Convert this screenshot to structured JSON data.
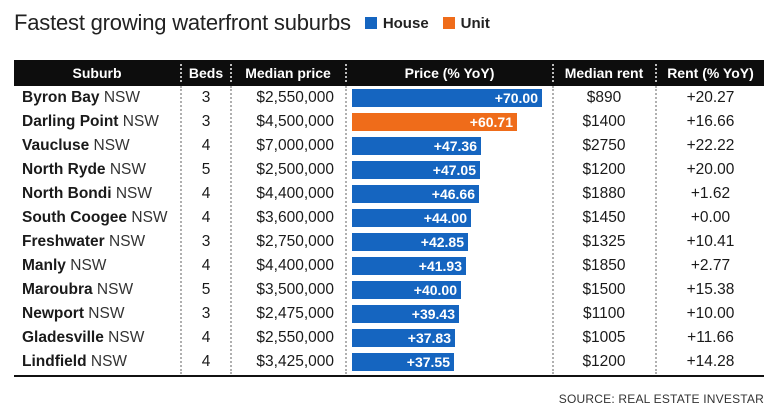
{
  "title": "Fastest growing waterfront suburbs",
  "legend": [
    {
      "label": "House",
      "color": "#1565c0"
    },
    {
      "label": "Unit",
      "color": "#ef6c1a"
    }
  ],
  "headers": {
    "suburb": "Suburb",
    "beds": "Beds",
    "median_price": "Median price",
    "price_yoy": "Price (% YoY)",
    "median_rent": "Median rent",
    "rent_yoy": "Rent (% YoY)"
  },
  "source": "SOURCE: REAL ESTATE INVESTAR",
  "chart_data": {
    "type": "table",
    "title": "Fastest growing waterfront suburbs",
    "columns": [
      "Suburb",
      "Beds",
      "Median price",
      "Price (% YoY)",
      "Median rent",
      "Rent (% YoY)"
    ],
    "legend": [
      "House",
      "Unit"
    ],
    "rows": [
      {
        "name": "Byron Bay",
        "state": "NSW",
        "beds": "3",
        "price": "$2,550,000",
        "price_yoy": 70.0,
        "price_yoy_label": "+70.00",
        "type": "House",
        "rent": "$890",
        "rent_yoy": "+20.27"
      },
      {
        "name": "Darling Point",
        "state": "NSW",
        "beds": "3",
        "price": "$4,500,000",
        "price_yoy": 60.71,
        "price_yoy_label": "+60.71",
        "type": "Unit",
        "rent": "$1400",
        "rent_yoy": "+16.66"
      },
      {
        "name": "Vaucluse",
        "state": "NSW",
        "beds": "4",
        "price": "$7,000,000",
        "price_yoy": 47.36,
        "price_yoy_label": "+47.36",
        "type": "House",
        "rent": "$2750",
        "rent_yoy": "+22.22"
      },
      {
        "name": "North Ryde",
        "state": "NSW",
        "beds": "5",
        "price": "$2,500,000",
        "price_yoy": 47.05,
        "price_yoy_label": "+47.05",
        "type": "House",
        "rent": "$1200",
        "rent_yoy": "+20.00"
      },
      {
        "name": "North Bondi",
        "state": "NSW",
        "beds": "4",
        "price": "$4,400,000",
        "price_yoy": 46.66,
        "price_yoy_label": "+46.66",
        "type": "House",
        "rent": "$1880",
        "rent_yoy": "+1.62"
      },
      {
        "name": "South Coogee",
        "state": "NSW",
        "beds": "4",
        "price": "$3,600,000",
        "price_yoy": 44.0,
        "price_yoy_label": "+44.00",
        "type": "House",
        "rent": "$1450",
        "rent_yoy": "+0.00"
      },
      {
        "name": "Freshwater",
        "state": "NSW",
        "beds": "3",
        "price": "$2,750,000",
        "price_yoy": 42.85,
        "price_yoy_label": "+42.85",
        "type": "House",
        "rent": "$1325",
        "rent_yoy": "+10.41"
      },
      {
        "name": "Manly",
        "state": "NSW",
        "beds": "4",
        "price": "$4,400,000",
        "price_yoy": 41.93,
        "price_yoy_label": "+41.93",
        "type": "House",
        "rent": "$1850",
        "rent_yoy": "+2.77"
      },
      {
        "name": "Maroubra",
        "state": "NSW",
        "beds": "5",
        "price": "$3,500,000",
        "price_yoy": 40.0,
        "price_yoy_label": "+40.00",
        "type": "House",
        "rent": "$1500",
        "rent_yoy": "+15.38"
      },
      {
        "name": "Newport",
        "state": "NSW",
        "beds": "3",
        "price": "$2,475,000",
        "price_yoy": 39.43,
        "price_yoy_label": "+39.43",
        "type": "House",
        "rent": "$1100",
        "rent_yoy": "+10.00"
      },
      {
        "name": "Gladesville",
        "state": "NSW",
        "beds": "4",
        "price": "$2,550,000",
        "price_yoy": 37.83,
        "price_yoy_label": "+37.83",
        "type": "House",
        "rent": "$1005",
        "rent_yoy": "+11.66"
      },
      {
        "name": "Lindfield",
        "state": "NSW",
        "beds": "4",
        "price": "$3,425,000",
        "price_yoy": 37.55,
        "price_yoy_label": "+37.55",
        "type": "House",
        "rent": "$1200",
        "rent_yoy": "+14.28"
      }
    ]
  }
}
